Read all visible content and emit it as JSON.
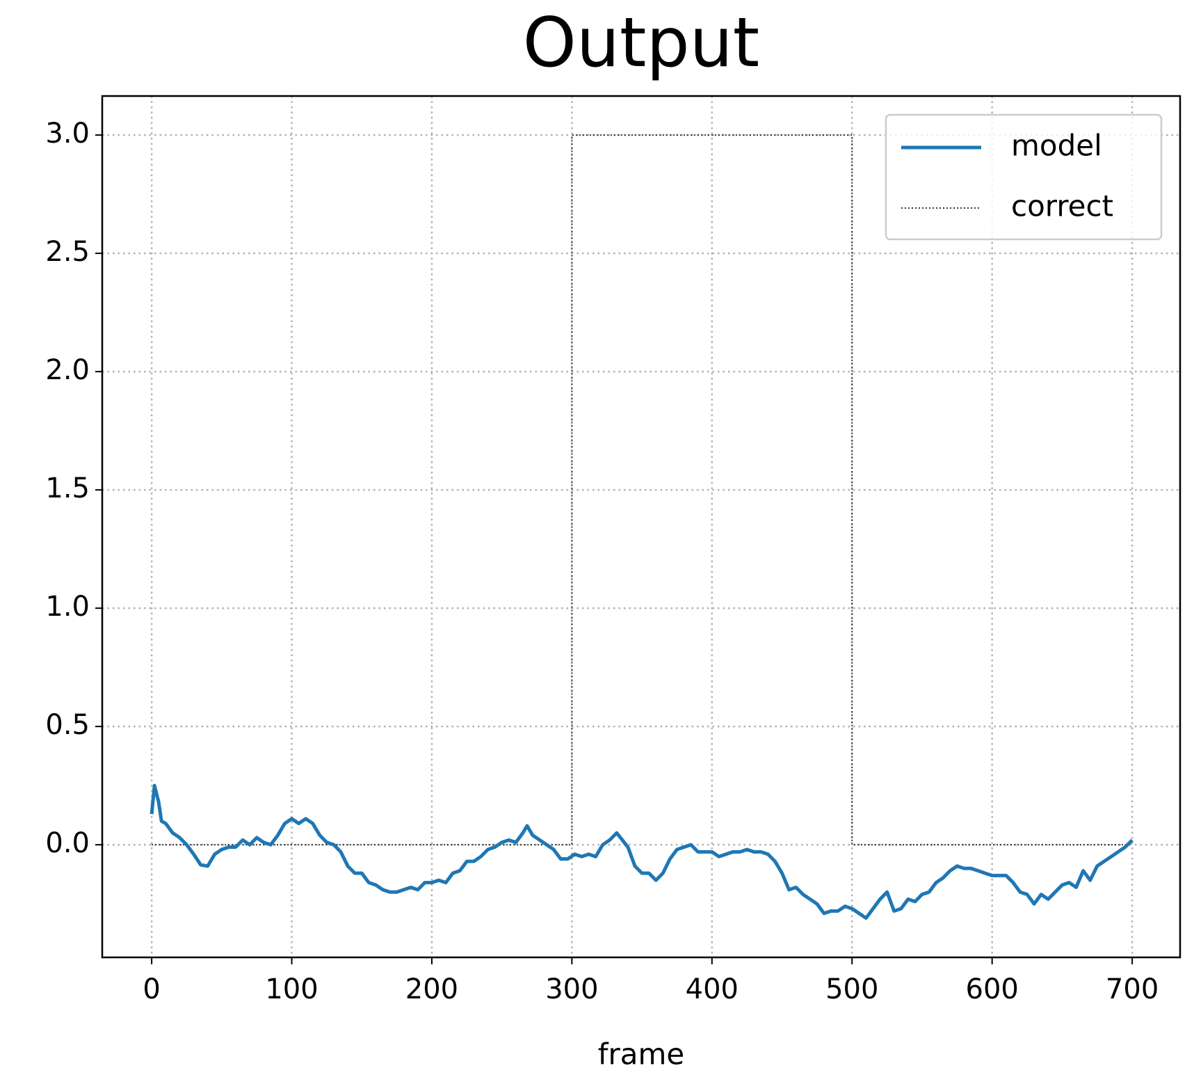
{
  "chart_data": {
    "type": "line",
    "title": "Output",
    "xlabel": "frame",
    "xlim": [
      -35.3,
      734.2
    ],
    "ylim": [
      -0.476,
      3.165
    ],
    "xticks": [
      0,
      100,
      200,
      300,
      400,
      500,
      600,
      700
    ],
    "yticks": [
      {
        "value": 0,
        "label": "0.0"
      },
      0.5,
      {
        "value": 1,
        "label": "1.0"
      },
      1.5,
      {
        "value": 2,
        "label": "2.0"
      },
      2.5,
      {
        "value": 3,
        "label": "3.0"
      }
    ],
    "grid": true,
    "legend": "upper right",
    "series": [
      {
        "name": "model",
        "color": "#1f77b4",
        "style": "solid",
        "x": [
          0,
          2,
          5,
          7,
          10,
          15,
          20,
          25,
          30,
          35,
          40,
          45,
          50,
          55,
          60,
          65,
          70,
          75,
          80,
          85,
          90,
          95,
          100,
          105,
          110,
          115,
          120,
          125,
          130,
          135,
          140,
          145,
          150,
          155,
          160,
          165,
          170,
          175,
          180,
          185,
          190,
          195,
          200,
          205,
          210,
          215,
          220,
          225,
          230,
          235,
          240,
          245,
          250,
          255,
          260,
          265,
          268,
          272,
          277,
          282,
          287,
          292,
          297,
          302,
          307,
          312,
          317,
          322,
          327,
          332,
          336,
          340,
          345,
          350,
          355,
          360,
          365,
          370,
          375,
          380,
          385,
          390,
          395,
          400,
          405,
          410,
          415,
          420,
          425,
          430,
          435,
          440,
          445,
          450,
          455,
          460,
          465,
          470,
          475,
          480,
          485,
          490,
          495,
          500,
          505,
          510,
          515,
          520,
          525,
          530,
          535,
          540,
          545,
          550,
          555,
          560,
          565,
          570,
          575,
          580,
          585,
          590,
          595,
          600,
          605,
          610,
          615,
          620,
          625,
          630,
          635,
          640,
          645,
          650,
          655,
          660,
          665,
          670,
          675,
          680,
          685,
          690,
          695,
          700
        ],
        "values": [
          0.13,
          0.25,
          0.18,
          0.1,
          0.09,
          0.05,
          0.03,
          0.0,
          -0.04,
          -0.085,
          -0.09,
          -0.04,
          -0.02,
          -0.01,
          -0.01,
          0.02,
          0.0,
          0.03,
          0.01,
          0.0,
          0.04,
          0.09,
          0.11,
          0.09,
          0.11,
          0.09,
          0.04,
          0.01,
          0.0,
          -0.03,
          -0.09,
          -0.12,
          -0.12,
          -0.16,
          -0.17,
          -0.19,
          -0.2,
          -0.2,
          -0.19,
          -0.18,
          -0.19,
          -0.16,
          -0.16,
          -0.15,
          -0.16,
          -0.12,
          -0.11,
          -0.07,
          -0.07,
          -0.05,
          -0.02,
          -0.01,
          0.01,
          0.02,
          0.01,
          0.05,
          0.08,
          0.04,
          0.02,
          0.0,
          -0.02,
          -0.06,
          -0.06,
          -0.04,
          -0.05,
          -0.04,
          -0.05,
          0.0,
          0.02,
          0.05,
          0.02,
          -0.01,
          -0.09,
          -0.12,
          -0.12,
          -0.15,
          -0.12,
          -0.06,
          -0.02,
          -0.01,
          0.0,
          -0.03,
          -0.03,
          -0.03,
          -0.05,
          -0.04,
          -0.03,
          -0.03,
          -0.02,
          -0.03,
          -0.03,
          -0.04,
          -0.07,
          -0.12,
          -0.19,
          -0.18,
          -0.21,
          -0.23,
          -0.25,
          -0.29,
          -0.28,
          -0.28,
          -0.26,
          -0.27,
          -0.29,
          -0.31,
          -0.27,
          -0.23,
          -0.2,
          -0.28,
          -0.27,
          -0.23,
          -0.24,
          -0.21,
          -0.2,
          -0.16,
          -0.14,
          -0.11,
          -0.09,
          -0.1,
          -0.1,
          -0.11,
          -0.12,
          -0.13,
          -0.13,
          -0.13,
          -0.16,
          -0.2,
          -0.21,
          -0.25,
          -0.21,
          -0.23,
          -0.2,
          -0.17,
          -0.16,
          -0.18,
          -0.11,
          -0.15,
          -0.09,
          -0.07,
          -0.05,
          -0.03,
          -0.01,
          0.02
        ]
      },
      {
        "name": "correct",
        "color": "#333333",
        "style": "dotted",
        "x": [
          0,
          300,
          300,
          500,
          500,
          700
        ],
        "values": [
          0,
          0,
          3,
          3,
          0,
          0
        ]
      }
    ]
  }
}
